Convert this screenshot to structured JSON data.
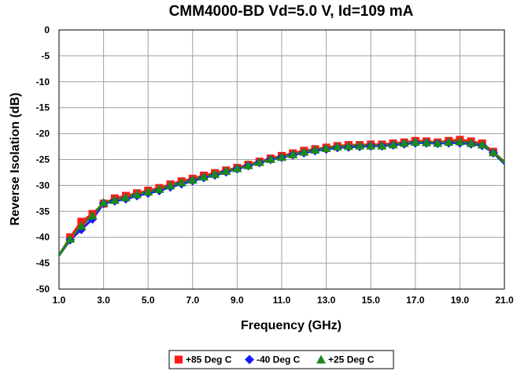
{
  "chart_data": {
    "type": "line",
    "title": "CMM4000-BD Vd=5.0 V, Id=109 mA",
    "xlabel": "Frequency (GHz)",
    "ylabel": "Reverse Isolation (dB)",
    "xlim": [
      1.0,
      21.0
    ],
    "ylim": [
      -50,
      0
    ],
    "x_ticks": [
      "1.0",
      "3.0",
      "5.0",
      "7.0",
      "9.0",
      "11.0",
      "13.0",
      "15.0",
      "17.0",
      "19.0",
      "21.0"
    ],
    "y_ticks": [
      "0",
      "-5",
      "-10",
      "-15",
      "-20",
      "-25",
      "-30",
      "-35",
      "-40",
      "-45",
      "-50"
    ],
    "grid": true,
    "legend_position": "bottom-center",
    "x": [
      1.0,
      1.5,
      2.0,
      2.5,
      3.0,
      3.5,
      4.0,
      4.5,
      5.0,
      5.5,
      6.0,
      6.5,
      7.0,
      7.5,
      8.0,
      8.5,
      9.0,
      9.5,
      10.0,
      10.5,
      11.0,
      11.5,
      12.0,
      12.5,
      13.0,
      13.5,
      14.0,
      14.5,
      15.0,
      15.5,
      16.0,
      16.5,
      17.0,
      17.5,
      18.0,
      18.5,
      19.0,
      19.5,
      20.0,
      20.5,
      21.0
    ],
    "series": [
      {
        "name": "+85 Deg C",
        "color": "#ff1a1a",
        "marker": "square",
        "values": [
          -43.5,
          -40.0,
          -37.0,
          -35.5,
          -33.5,
          -32.5,
          -32.0,
          -31.5,
          -31.0,
          -30.5,
          -29.8,
          -29.2,
          -28.7,
          -28.1,
          -27.6,
          -27.1,
          -26.6,
          -26.0,
          -25.4,
          -24.8,
          -24.3,
          -23.8,
          -23.3,
          -23.0,
          -22.7,
          -22.4,
          -22.2,
          -22.2,
          -22.1,
          -22.1,
          -21.9,
          -21.7,
          -21.4,
          -21.5,
          -21.7,
          -21.4,
          -21.2,
          -21.5,
          -21.9,
          -23.5,
          -25.5
        ]
      },
      {
        "name": "-40 Deg C",
        "color": "#1a1aff",
        "marker": "diamond",
        "values": [
          -43.5,
          -40.5,
          -38.5,
          -36.5,
          -33.5,
          -33.0,
          -32.6,
          -32.0,
          -31.5,
          -31.0,
          -30.3,
          -29.7,
          -29.1,
          -28.5,
          -28.0,
          -27.4,
          -26.8,
          -26.2,
          -25.6,
          -25.0,
          -24.6,
          -24.1,
          -23.7,
          -23.3,
          -23.0,
          -22.7,
          -22.6,
          -22.5,
          -22.4,
          -22.4,
          -22.2,
          -22.0,
          -21.8,
          -21.8,
          -21.9,
          -21.8,
          -21.8,
          -22.0,
          -22.3,
          -23.7,
          -25.8
        ]
      },
      {
        "name": "+25 Deg C",
        "color": "#1a8a1a",
        "marker": "triangle",
        "values": [
          -43.5,
          -40.3,
          -37.8,
          -35.8,
          -33.3,
          -32.8,
          -32.3,
          -31.7,
          -31.2,
          -30.7,
          -30.0,
          -29.4,
          -28.9,
          -28.3,
          -27.8,
          -27.2,
          -26.7,
          -26.1,
          -25.5,
          -24.9,
          -24.5,
          -24.0,
          -23.5,
          -23.1,
          -22.8,
          -22.5,
          -22.4,
          -22.3,
          -22.3,
          -22.3,
          -22.1,
          -21.8,
          -21.6,
          -21.7,
          -21.8,
          -21.6,
          -21.5,
          -21.8,
          -22.1,
          -23.6,
          -25.6
        ]
      }
    ]
  }
}
